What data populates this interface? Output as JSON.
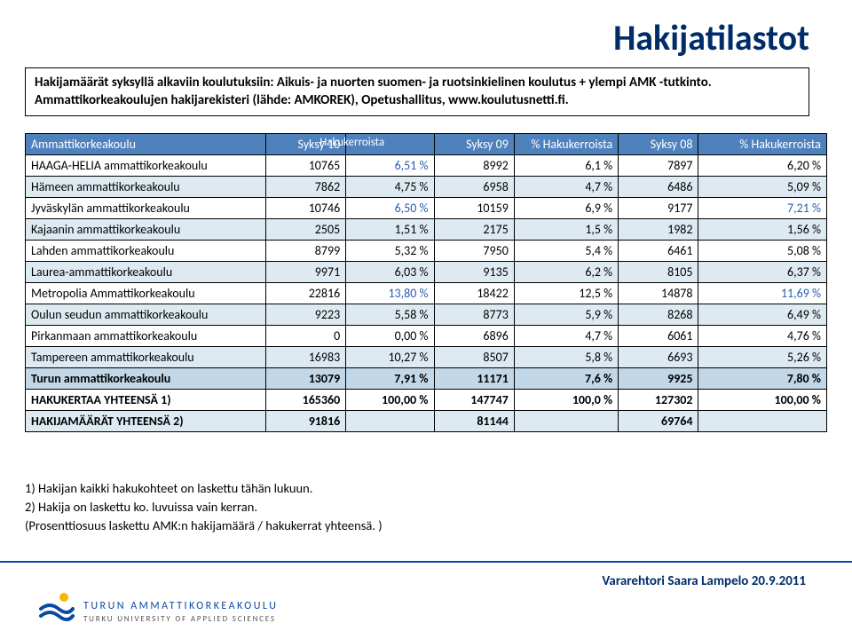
{
  "colors": {
    "title": "#002d69",
    "header_bg": "#4f81bd",
    "header_text": "#ffffff",
    "row_alt_bg": "#deeaf1",
    "row_highlight_bg": "#c2d8e8",
    "accent_text": "#2a5db0",
    "footer_line": "#0a49a0",
    "logo_fi": "#0a49a0",
    "logo_en": "#555555"
  },
  "typography": {
    "title_fontsize": 40,
    "body_fontsize": 14,
    "notes_fontsize": 14.5,
    "footer_right_fontsize": 15
  },
  "title": "Hakijatilastot",
  "desc": {
    "line1": "Hakijamäärät syksyllä alkaviin koulutuksiin: Aikuis- ja nuorten suomen- ja ruotsinkielinen koulutus + ylempi AMK -tutkinto.",
    "line2_a": "Ammattikorkeakoulujen hakijarekisteri (lähde: AMKOREK), Opetushallitus, ",
    "line2_link": "www.koulutusnetti.fi",
    "line2_b": "."
  },
  "table": {
    "columns": [
      "Ammattikorkeakoulu",
      "Syksy 10",
      "%",
      "Syksy 09",
      "% Hakukerroista",
      "Syksy 08",
      "% Hakukerroista"
    ],
    "stray_header_text": "Hakukerroista",
    "rows": [
      {
        "cells": [
          "HAAGA-HELIA ammattikorkeakoulu",
          "10765",
          "6,51 %",
          "8992",
          "6,1 %",
          "7897",
          "6,20 %"
        ],
        "accent_cols": [
          2
        ]
      },
      {
        "cells": [
          "Hämeen ammattikorkeakoulu",
          "7862",
          "4,75 %",
          "6958",
          "4,7 %",
          "6486",
          "5,09 %"
        ],
        "alt": true
      },
      {
        "cells": [
          "Jyväskylän ammattikorkeakoulu",
          "10746",
          "6,50 %",
          "10159",
          "6,9 %",
          "9177",
          "7,21 %"
        ],
        "accent_cols": [
          2,
          6
        ]
      },
      {
        "cells": [
          "Kajaanin ammattikorkeakoulu",
          "2505",
          "1,51 %",
          "2175",
          "1,5 %",
          "1982",
          "1,56 %"
        ],
        "alt": true
      },
      {
        "cells": [
          "Lahden ammattikorkeakoulu",
          "8799",
          "5,32 %",
          "7950",
          "5,4 %",
          "6461",
          "5,08 %"
        ]
      },
      {
        "cells": [
          "Laurea-ammattikorkeakoulu",
          "9971",
          "6,03 %",
          "9135",
          "6,2 %",
          "8105",
          "6,37 %"
        ],
        "alt": true
      },
      {
        "cells": [
          "Metropolia Ammattikorkeakoulu",
          "22816",
          "13,80 %",
          "18422",
          "12,5 %",
          "14878",
          "11,69 %"
        ],
        "accent_cols": [
          2,
          6
        ]
      },
      {
        "cells": [
          "Oulun seudun ammattikorkeakoulu",
          "9223",
          "5,58 %",
          "8773",
          "5,9 %",
          "8268",
          "6,49 %"
        ],
        "alt": true
      },
      {
        "cells": [
          "Pirkanmaan ammattikorkeakoulu",
          "0",
          "0,00 %",
          "6896",
          "4,7 %",
          "6061",
          "4,76 %"
        ]
      },
      {
        "cells": [
          "Tampereen ammattikorkeakoulu",
          "16983",
          "10,27 %",
          "8507",
          "5,8 %",
          "6693",
          "5,26 %"
        ],
        "alt": true
      },
      {
        "cells": [
          "Turun ammattikorkeakoulu",
          "13079",
          "7,91 %",
          "11171",
          "7,6 %",
          "9925",
          "7,80 %"
        ],
        "highlight": true
      },
      {
        "cells": [
          "HAKUKERTAA YHTEENSÄ 1)",
          "165360",
          "100,00 %",
          "147747",
          "100,0 %",
          "127302",
          "100,00 %"
        ],
        "bold": true
      },
      {
        "cells": [
          "HAKIJAMÄÄRÄT YHTEENSÄ 2)",
          "91816",
          "",
          "81144",
          "",
          "69764",
          ""
        ],
        "bold": true,
        "alt": true
      }
    ],
    "column_align": [
      "left",
      "right",
      "right",
      "right",
      "right",
      "right",
      "right"
    ],
    "col_widths_pct": [
      30,
      10,
      11,
      10,
      13,
      10,
      16
    ]
  },
  "notes": {
    "n1": "1) Hakijan kaikki hakukohteet on laskettu tähän lukuun.",
    "n2": "2) Hakija on laskettu ko. luvuissa vain kerran.",
    "n3": "(Prosenttiosuus laskettu AMK:n hakijamäärä / hakukerrat yhteensä. )"
  },
  "footer": {
    "logo_fi": "TURUN AMMATTIKORKEAKOULU",
    "logo_en": "TURKU UNIVERSITY OF APPLIED SCIENCES",
    "right": "Vararehtori Saara Lampelo 20.9.2011"
  }
}
